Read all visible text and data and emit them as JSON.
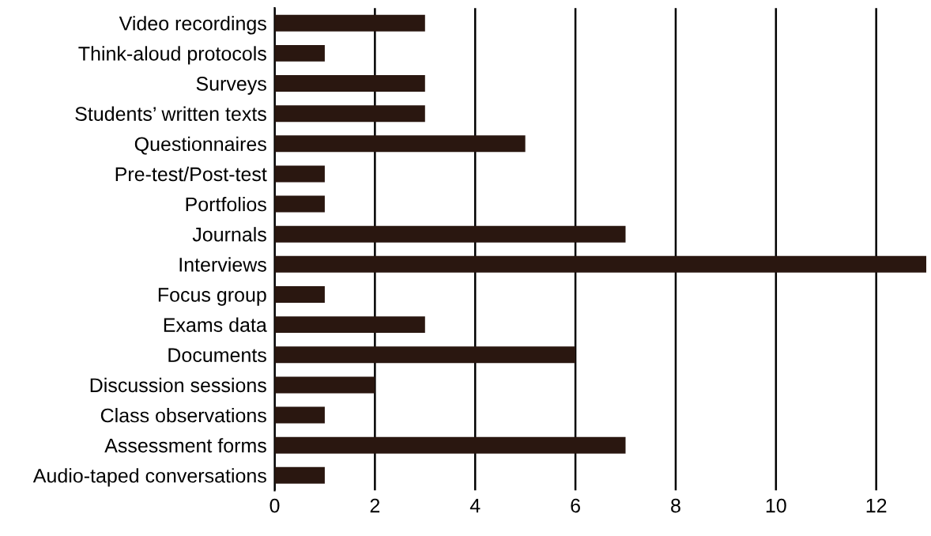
{
  "chart_data": {
    "type": "bar",
    "orientation": "horizontal",
    "categories": [
      "Video recordings",
      "Think-aloud protocols",
      "Surveys",
      "Students’ written texts",
      "Questionnaires",
      "Pre-test/Post-test",
      "Portfolios",
      "Journals",
      "Interviews",
      "Focus group",
      "Exams data",
      "Documents",
      "Discussion sessions",
      "Class observations",
      "Assessment forms",
      "Audio-taped conversations"
    ],
    "values": [
      3,
      1,
      3,
      3,
      5,
      1,
      1,
      7,
      13,
      1,
      3,
      6,
      2,
      1,
      7,
      1
    ],
    "color": "#2a1710",
    "xlim": [
      0,
      13
    ],
    "xticks": [
      0,
      2,
      4,
      6,
      8,
      10,
      12
    ],
    "grid": "x",
    "legend": false
  }
}
